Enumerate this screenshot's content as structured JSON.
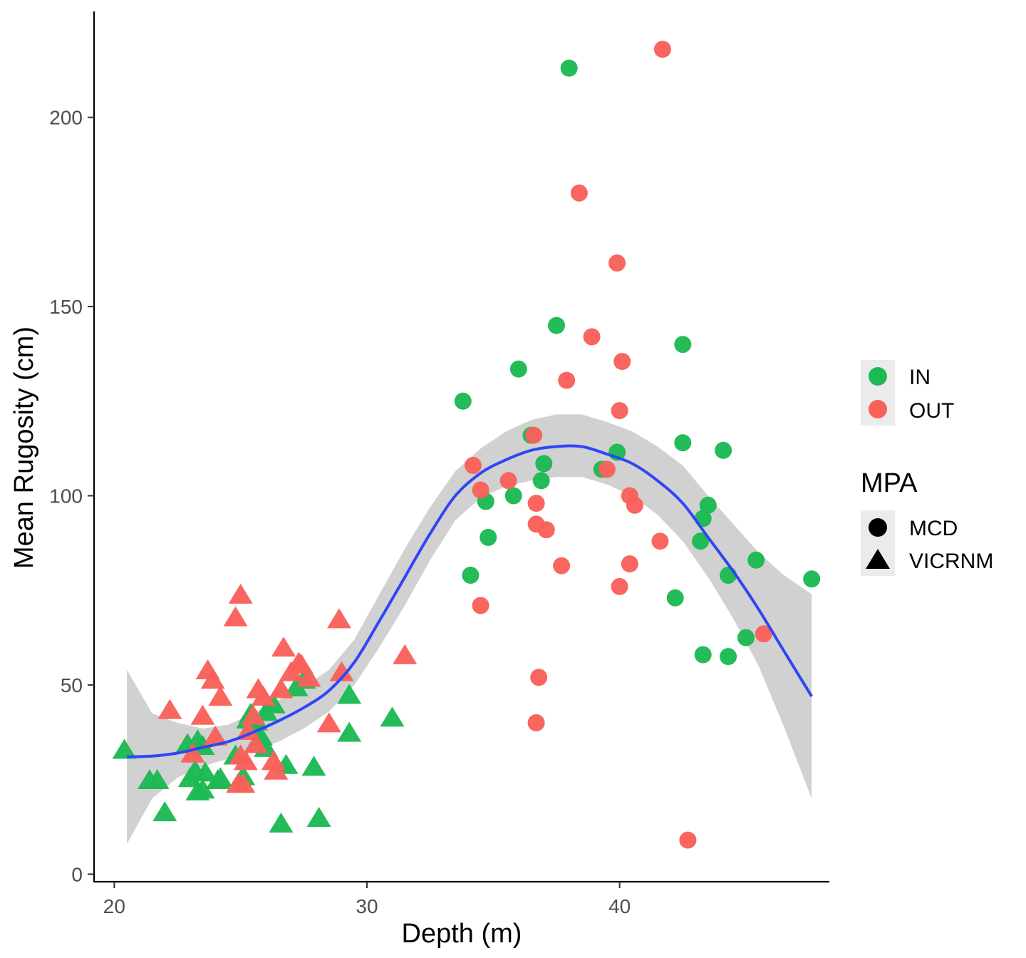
{
  "chart_data": {
    "type": "scatter",
    "title": "",
    "xlabel": "Depth (m)",
    "ylabel": "Mean Rugosity (cm)",
    "xlim": [
      19.2,
      48.3
    ],
    "ylim": [
      -2,
      228
    ],
    "x_ticks": [
      20,
      30,
      40
    ],
    "y_ticks": [
      0,
      50,
      100,
      150,
      200
    ],
    "grid": false,
    "legend_position": "right",
    "color_legend": {
      "entries": [
        {
          "label": "IN",
          "color": "#1DB954"
        },
        {
          "label": "OUT",
          "color": "#F8615A"
        }
      ]
    },
    "shape_legend": {
      "title": "MPA",
      "entries": [
        {
          "label": "MCD",
          "shape": "circle"
        },
        {
          "label": "VICRNM",
          "shape": "triangle"
        }
      ]
    },
    "colors": {
      "IN": "#1DB954",
      "OUT": "#F8615A",
      "smooth_line": "#2E46F5",
      "ribbon": "#BEBEBE"
    },
    "series": [
      {
        "group": "IN",
        "shape": "circle",
        "points": [
          [
            33.8,
            125
          ],
          [
            34.7,
            98.5
          ],
          [
            34.8,
            89
          ],
          [
            34.1,
            79
          ],
          [
            35.8,
            100
          ],
          [
            36.0,
            133.5
          ],
          [
            36.5,
            116
          ],
          [
            37.0,
            108.5
          ],
          [
            36.9,
            104
          ],
          [
            37.5,
            145
          ],
          [
            38.0,
            213
          ],
          [
            39.3,
            107
          ],
          [
            39.9,
            111.5
          ],
          [
            42.5,
            114
          ],
          [
            42.5,
            140
          ],
          [
            42.2,
            73
          ],
          [
            43.2,
            88
          ],
          [
            43.3,
            94
          ],
          [
            43.5,
            97.5
          ],
          [
            43.3,
            58
          ],
          [
            44.1,
            112
          ],
          [
            44.3,
            79
          ],
          [
            44.3,
            57.5
          ],
          [
            45.0,
            62.5
          ],
          [
            45.4,
            83
          ],
          [
            47.6,
            78
          ]
        ]
      },
      {
        "group": "OUT",
        "shape": "circle",
        "points": [
          [
            34.2,
            108
          ],
          [
            34.5,
            101.5
          ],
          [
            34.5,
            71
          ],
          [
            35.6,
            104
          ],
          [
            36.6,
            116
          ],
          [
            36.7,
            98
          ],
          [
            36.7,
            92.5
          ],
          [
            37.1,
            91
          ],
          [
            36.8,
            52
          ],
          [
            36.7,
            40
          ],
          [
            37.7,
            81.5
          ],
          [
            37.9,
            130.5
          ],
          [
            38.4,
            180
          ],
          [
            38.9,
            142
          ],
          [
            39.5,
            107
          ],
          [
            39.9,
            161.5
          ],
          [
            40.1,
            135.5
          ],
          [
            40.0,
            122.5
          ],
          [
            40.4,
            100
          ],
          [
            40.6,
            97.5
          ],
          [
            40.0,
            76
          ],
          [
            40.4,
            82
          ],
          [
            41.6,
            88
          ],
          [
            41.7,
            218
          ],
          [
            42.7,
            9
          ],
          [
            45.7,
            63.5
          ]
        ]
      },
      {
        "group": "IN",
        "shape": "triangle",
        "points": [
          [
            20.4,
            32.5
          ],
          [
            21.4,
            24.5
          ],
          [
            21.7,
            24.5
          ],
          [
            22.0,
            16
          ],
          [
            22.9,
            34
          ],
          [
            23.0,
            25
          ],
          [
            23.2,
            27
          ],
          [
            23.3,
            35
          ],
          [
            23.5,
            33.5
          ],
          [
            23.3,
            21.5
          ],
          [
            23.6,
            26.5
          ],
          [
            23.5,
            22
          ],
          [
            24.1,
            24.5
          ],
          [
            24.2,
            25
          ],
          [
            24.8,
            31
          ],
          [
            25.1,
            25.5
          ],
          [
            25.3,
            40.5
          ],
          [
            25.4,
            42
          ],
          [
            25.6,
            40
          ],
          [
            25.8,
            36
          ],
          [
            26.0,
            33
          ],
          [
            26.0,
            42.5
          ],
          [
            26.3,
            44.5
          ],
          [
            26.8,
            28.5
          ],
          [
            26.6,
            13
          ],
          [
            27.2,
            49
          ],
          [
            27.5,
            51
          ],
          [
            27.9,
            28
          ],
          [
            28.1,
            14.5
          ],
          [
            29.3,
            47
          ],
          [
            29.3,
            37
          ],
          [
            31.0,
            41
          ]
        ]
      },
      {
        "group": "OUT",
        "shape": "triangle",
        "points": [
          [
            22.2,
            43
          ],
          [
            23.1,
            31.5
          ],
          [
            23.5,
            41.5
          ],
          [
            23.7,
            53.5
          ],
          [
            23.9,
            51
          ],
          [
            24.0,
            36
          ],
          [
            24.2,
            46.5
          ],
          [
            24.8,
            67.5
          ],
          [
            25.0,
            73.5
          ],
          [
            25.0,
            31
          ],
          [
            24.9,
            23.5
          ],
          [
            25.1,
            23.5
          ],
          [
            25.2,
            29.5
          ],
          [
            25.5,
            41.5
          ],
          [
            25.6,
            34
          ],
          [
            25.7,
            48.5
          ],
          [
            25.9,
            46.5
          ],
          [
            26.3,
            29.5
          ],
          [
            26.4,
            27
          ],
          [
            26.6,
            48.5
          ],
          [
            26.7,
            59.5
          ],
          [
            27.0,
            53
          ],
          [
            27.3,
            55.5
          ],
          [
            27.4,
            55
          ],
          [
            27.7,
            51.5
          ],
          [
            28.5,
            39.5
          ],
          [
            28.9,
            67
          ],
          [
            29.0,
            53
          ],
          [
            31.5,
            57.5
          ],
          [
            25.3,
            37.5
          ]
        ]
      }
    ],
    "smooth": {
      "method": "loess",
      "x": [
        20.5,
        21.5,
        22.5,
        23.5,
        24.5,
        25.5,
        26.5,
        27.5,
        28.5,
        29.5,
        30.5,
        31.5,
        32.5,
        33.5,
        34.5,
        35.5,
        36.5,
        37.5,
        38.5,
        39.5,
        40.5,
        41.5,
        42.5,
        43.5,
        44.5,
        45.5,
        46.5,
        47.6
      ],
      "y": [
        31,
        31.2,
        32,
        33.5,
        35,
        37.5,
        40.5,
        44,
        48.5,
        56,
        67,
        78.5,
        90,
        100,
        106,
        109.5,
        112,
        113,
        113,
        111,
        108.5,
        104,
        98,
        89,
        80,
        70,
        59,
        47
      ],
      "lower": [
        8,
        20,
        25.5,
        28.5,
        30.5,
        32.5,
        35,
        38.5,
        43,
        50,
        60,
        71,
        83,
        93.5,
        99.5,
        102.5,
        104,
        105,
        105,
        103,
        100,
        95,
        88,
        78.5,
        67.5,
        55,
        39,
        20
      ],
      "upper": [
        54,
        42.5,
        40,
        38.5,
        39.5,
        42.5,
        46,
        49.5,
        54,
        62,
        74,
        86,
        97,
        106.5,
        112.5,
        117,
        120,
        121.5,
        121.5,
        119.5,
        117,
        113,
        108,
        100,
        92.5,
        85,
        79,
        74
      ]
    }
  }
}
